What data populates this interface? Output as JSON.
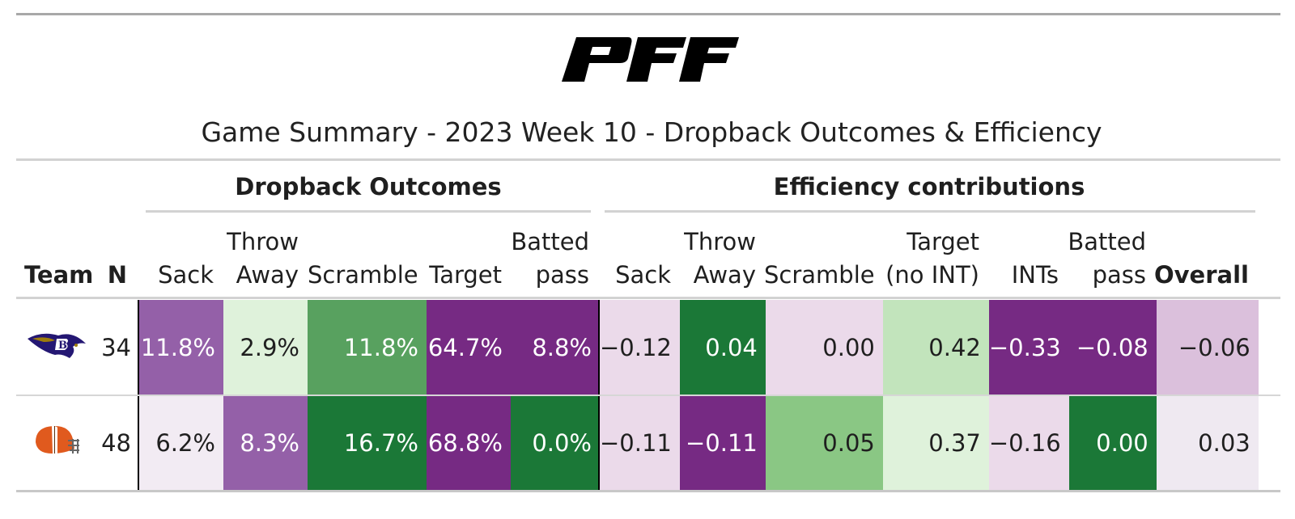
{
  "logo_text": "PFF",
  "title": "Game Summary - 2023 Week 10 - Dropback Outcomes & Efficiency",
  "spanners": {
    "outcomes": "Dropback Outcomes",
    "efficiency": "Efficiency contributions"
  },
  "columns": {
    "team": "Team",
    "n": "N",
    "o_sack": "Sack",
    "o_throw_1": "Throw",
    "o_throw_2": "Away",
    "o_scramble": "Scramble",
    "o_target": "Target",
    "o_batted_1": "Batted",
    "o_batted_2": "pass",
    "e_sack": "Sack",
    "e_throw_1": "Throw",
    "e_throw_2": "Away",
    "e_scramble": "Scramble",
    "e_target_1": "Target",
    "e_target_2": "(no INT)",
    "e_ints": "INTs",
    "e_batted_1": "Batted",
    "e_batted_2": "pass",
    "overall": "Overall"
  },
  "rows": [
    {
      "team_icon": "ravens-logo-icon",
      "n": "34",
      "cells": [
        {
          "text": "11.8%",
          "bg": "#9460a8",
          "fg": "#ffffff"
        },
        {
          "text": "2.9%",
          "bg": "#dff2db",
          "fg": "#1f1f1f"
        },
        {
          "text": "11.8%",
          "bg": "#58a15f",
          "fg": "#ffffff"
        },
        {
          "text": "64.7%",
          "bg": "#762a83",
          "fg": "#ffffff"
        },
        {
          "text": "8.8%",
          "bg": "#762a83",
          "fg": "#ffffff"
        },
        {
          "text": "−0.12",
          "bg": "#ebdaea",
          "fg": "#1f1f1f"
        },
        {
          "text": "0.04",
          "bg": "#1b7837",
          "fg": "#ffffff"
        },
        {
          "text": "0.00",
          "bg": "#ebdaea",
          "fg": "#1f1f1f"
        },
        {
          "text": "0.42",
          "bg": "#c2e4bc",
          "fg": "#1f1f1f"
        },
        {
          "text": "−0.33",
          "bg": "#762a83",
          "fg": "#ffffff"
        },
        {
          "text": "−0.08",
          "bg": "#762a83",
          "fg": "#ffffff"
        },
        {
          "text": "−0.06",
          "bg": "#dbc0dc",
          "fg": "#1f1f1f"
        }
      ]
    },
    {
      "team_icon": "browns-helmet-icon",
      "n": "48",
      "cells": [
        {
          "text": "6.2%",
          "bg": "#f2ebf3",
          "fg": "#1f1f1f"
        },
        {
          "text": "8.3%",
          "bg": "#9460a8",
          "fg": "#ffffff"
        },
        {
          "text": "16.7%",
          "bg": "#1b7837",
          "fg": "#ffffff"
        },
        {
          "text": "68.8%",
          "bg": "#762a83",
          "fg": "#ffffff"
        },
        {
          "text": "0.0%",
          "bg": "#1b7837",
          "fg": "#ffffff"
        },
        {
          "text": "−0.11",
          "bg": "#ebdaea",
          "fg": "#1f1f1f"
        },
        {
          "text": "−0.11",
          "bg": "#762a83",
          "fg": "#ffffff"
        },
        {
          "text": "0.05",
          "bg": "#8ac784",
          "fg": "#1f1f1f"
        },
        {
          "text": "0.37",
          "bg": "#dff2db",
          "fg": "#1f1f1f"
        },
        {
          "text": "−0.16",
          "bg": "#ebdaea",
          "fg": "#1f1f1f"
        },
        {
          "text": "0.00",
          "bg": "#1b7837",
          "fg": "#ffffff"
        },
        {
          "text": "0.03",
          "bg": "#efe9f1",
          "fg": "#1f1f1f"
        }
      ]
    }
  ]
}
